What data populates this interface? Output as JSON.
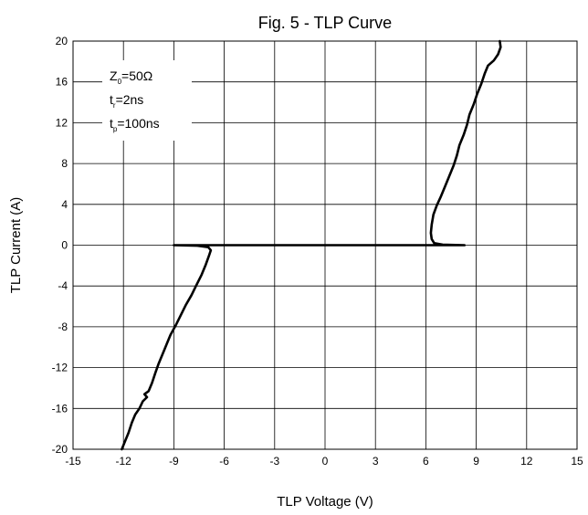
{
  "chart_data": {
    "type": "line",
    "title": "Fig. 5 - TLP Curve",
    "xlabel": "TLP Voltage (V)",
    "ylabel": "TLP Current (A)",
    "xlim": [
      -15,
      15
    ],
    "ylim": [
      -20,
      20
    ],
    "xticks": [
      -15,
      -12,
      -9,
      -6,
      -3,
      0,
      3,
      6,
      9,
      12,
      15
    ],
    "yticks": [
      -20,
      -16,
      -12,
      -8,
      -4,
      0,
      4,
      8,
      12,
      16,
      20
    ],
    "grid": true,
    "annotation": [
      {
        "main": "Z",
        "sub": "0",
        "rest": "=50Ω"
      },
      {
        "main": "t",
        "sub": "r",
        "rest": "=2ns"
      },
      {
        "main": "t",
        "sub": "p",
        "rest": "=100ns"
      }
    ],
    "series": [
      {
        "color": "#000000",
        "points": [
          [
            -12.1,
            -20
          ],
          [
            -11.9,
            -19.2
          ],
          [
            -11.7,
            -18.4
          ],
          [
            -11.5,
            -17.4
          ],
          [
            -11.3,
            -16.6
          ],
          [
            -11.05,
            -16.0
          ],
          [
            -10.85,
            -15.3
          ],
          [
            -10.6,
            -14.9
          ],
          [
            -10.75,
            -14.6
          ],
          [
            -10.5,
            -14.3
          ],
          [
            -10.3,
            -13.5
          ],
          [
            -10.1,
            -12.5
          ],
          [
            -9.9,
            -11.6
          ],
          [
            -9.65,
            -10.6
          ],
          [
            -9.4,
            -9.6
          ],
          [
            -9.2,
            -8.8
          ],
          [
            -8.9,
            -7.9
          ],
          [
            -8.6,
            -6.9
          ],
          [
            -8.3,
            -5.9
          ],
          [
            -7.95,
            -4.9
          ],
          [
            -7.65,
            -3.9
          ],
          [
            -7.35,
            -2.9
          ],
          [
            -7.1,
            -1.9
          ],
          [
            -6.9,
            -1.0
          ],
          [
            -6.8,
            -0.5
          ],
          [
            -6.95,
            -0.2
          ],
          [
            -7.6,
            -0.05
          ],
          [
            -9.0,
            0.0
          ],
          [
            8.3,
            0.0
          ],
          [
            7.0,
            0.05
          ],
          [
            6.5,
            0.2
          ],
          [
            6.35,
            0.6
          ],
          [
            6.3,
            1.2
          ],
          [
            6.35,
            2.0
          ],
          [
            6.45,
            3.0
          ],
          [
            6.65,
            3.9
          ],
          [
            6.9,
            4.8
          ],
          [
            7.15,
            5.8
          ],
          [
            7.4,
            6.8
          ],
          [
            7.65,
            7.8
          ],
          [
            7.85,
            8.8
          ],
          [
            8.0,
            9.8
          ],
          [
            8.25,
            10.8
          ],
          [
            8.45,
            11.8
          ],
          [
            8.6,
            12.8
          ],
          [
            8.85,
            13.8
          ],
          [
            9.05,
            14.8
          ],
          [
            9.3,
            15.8
          ],
          [
            9.5,
            16.8
          ],
          [
            9.7,
            17.6
          ],
          [
            10.05,
            18.1
          ],
          [
            10.3,
            18.7
          ],
          [
            10.45,
            19.4
          ],
          [
            10.4,
            20.0
          ]
        ]
      }
    ]
  }
}
